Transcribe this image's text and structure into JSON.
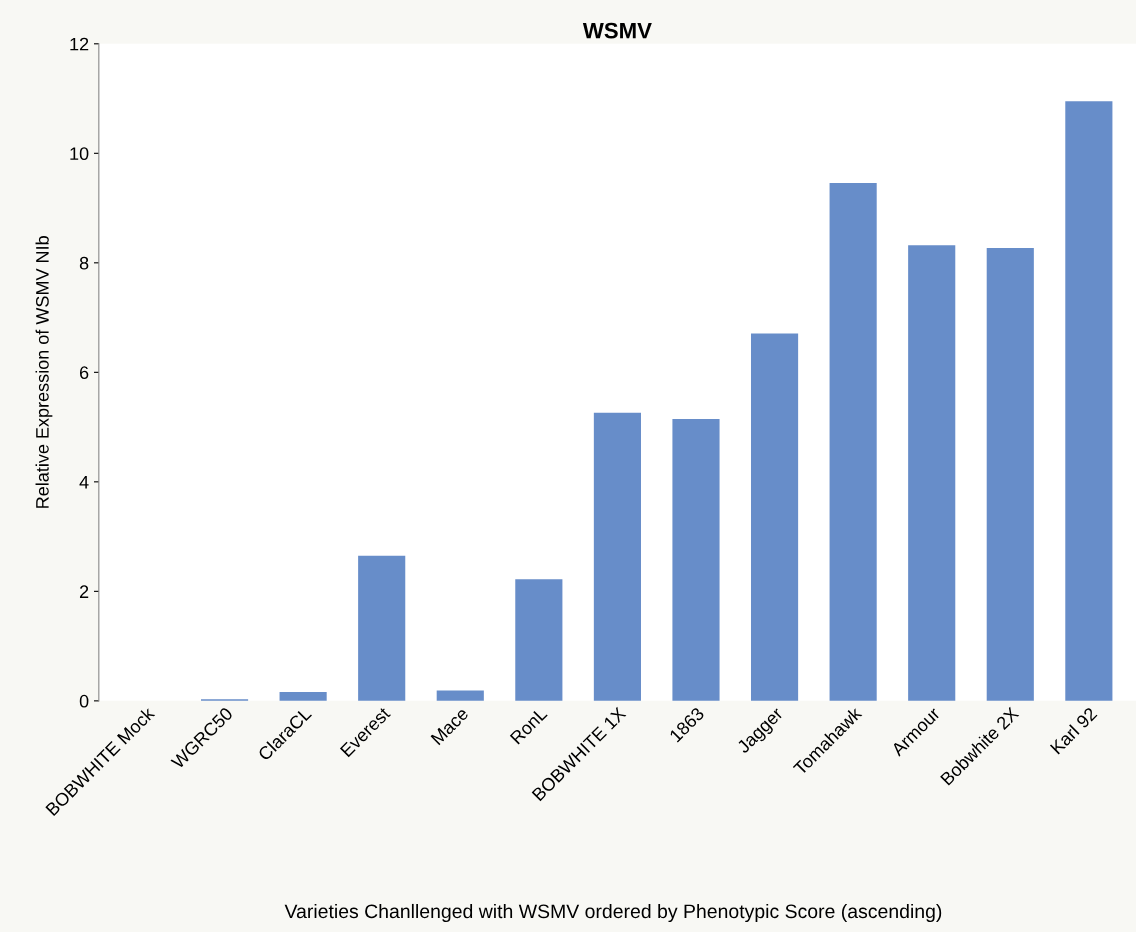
{
  "chart_data": {
    "type": "bar",
    "title": "WSMV",
    "xlabel": "Varieties Chanllenged with WSMV ordered by Phenotypic Score (ascending)",
    "ylabel": "Relative Expression of WSMV NIb",
    "categories": [
      "BOBWHITE Mock",
      "WGRC50",
      "ClaraCL",
      "Everest",
      "Mace",
      "RonL",
      "BOBWHITE 1X",
      "1863",
      "Jagger",
      "Tomahawk",
      "Armour",
      "Bobwhite 2X",
      "Karl 92"
    ],
    "values": [
      0.0,
      0.03,
      0.16,
      2.65,
      0.19,
      2.22,
      5.26,
      5.15,
      6.71,
      9.46,
      8.32,
      8.27,
      10.95
    ],
    "color": "#678dc9",
    "ylim": [
      0,
      12
    ],
    "yticks": [
      0,
      2,
      4,
      6,
      8,
      10,
      12
    ],
    "grid": false
  }
}
